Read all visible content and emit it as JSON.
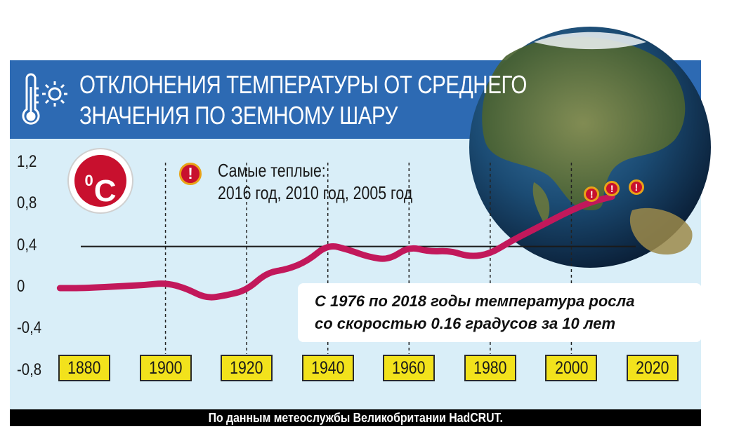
{
  "title": {
    "line1": "ОТКЛОНЕНИЯ ТЕМПЕРАТУРЫ ОТ СРЕДНЕГО",
    "line2": "ЗНАЧЕНИЯ ПО ЗЕМНОМУ ШАРУ"
  },
  "unit_badge": "C",
  "unit_badge_degree": "0",
  "warmest": {
    "label": "Самые теплые:",
    "years": "2016 год, 2010 год, 2005 год",
    "marker_years": [
      2005,
      2010,
      2016
    ]
  },
  "note": {
    "line1": "С 1976 по 2018 годы температура росла",
    "line2": "со скоростью 0.16 градусов за 10 лет"
  },
  "source": "По данным метеослужбы Великобритании HadCRUT.",
  "icons": [
    "thermometer-icon",
    "sun-icon",
    "warning-icon",
    "globe-illustration"
  ],
  "colors": {
    "panel": "#d9eef8",
    "title_bar": "#2d6ab3",
    "line": "#c2185b",
    "year_box": "#f2e21c",
    "badge": "#c8102e"
  },
  "chart_data": {
    "type": "line",
    "title": "ОТКЛОНЕНИЯ ТЕМПЕРАТУРЫ ОТ СРЕДНЕГО ЗНАЧЕНИЯ ПО ЗЕМНОМУ ШАРУ",
    "xlabel": "",
    "ylabel": "",
    "xlim": [
      1880,
      2020
    ],
    "ylim": [
      -0.8,
      1.2
    ],
    "yticks": [
      "1,2",
      "0,8",
      "0,4",
      "0",
      "-0,4",
      "-0,8"
    ],
    "ytick_values": [
      1.2,
      0.8,
      0.4,
      0,
      -0.4,
      -0.8
    ],
    "xticks": [
      "1880",
      "1900",
      "1920",
      "1940",
      "1960",
      "1980",
      "2000",
      "2020"
    ],
    "xtick_values": [
      1880,
      1900,
      1920,
      1940,
      1960,
      1980,
      2000,
      2020
    ],
    "reference_line": 0.4,
    "x": [
      1874,
      1880,
      1890,
      1895,
      1900,
      1905,
      1910,
      1915,
      1920,
      1925,
      1930,
      1935,
      1940,
      1945,
      1950,
      1955,
      1960,
      1965,
      1970,
      1975,
      1980,
      1985,
      1990,
      1995,
      2000,
      2005,
      2010
    ],
    "values": [
      0.0,
      0.0,
      0.02,
      0.03,
      0.05,
      0.0,
      -0.1,
      -0.07,
      -0.02,
      0.15,
      0.18,
      0.26,
      0.42,
      0.37,
      0.3,
      0.27,
      0.4,
      0.35,
      0.36,
      0.3,
      0.33,
      0.45,
      0.55,
      0.65,
      0.75,
      0.83,
      0.88
    ]
  }
}
